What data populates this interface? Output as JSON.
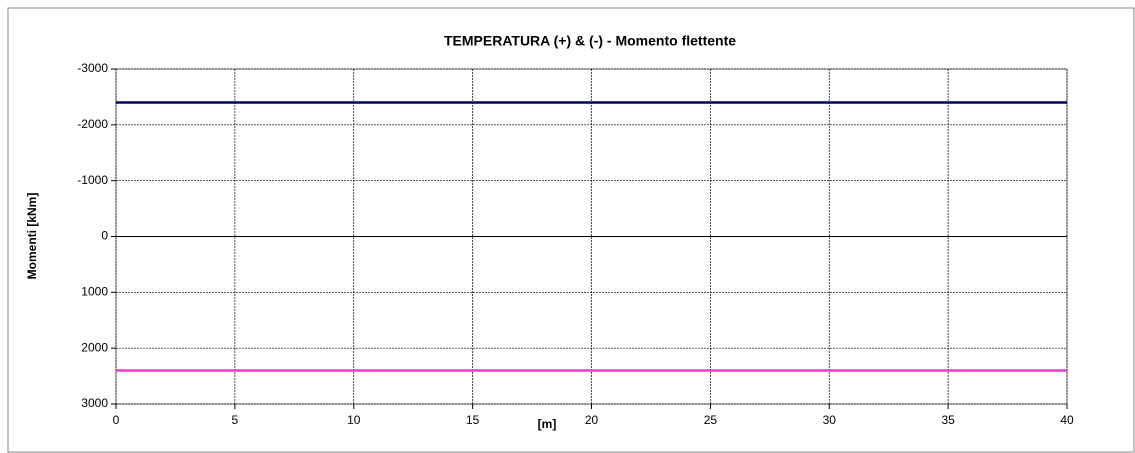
{
  "chart_data": {
    "type": "line",
    "title": "TEMPERATURA (+) & (-)  - Momento flettente",
    "xlabel": "[m]",
    "ylabel": "Momenti [kNm]",
    "series": [
      {
        "name": "TEMPERATURA (+)",
        "color": "#000066",
        "x": [
          0,
          40
        ],
        "values": [
          -2400,
          -2400
        ]
      },
      {
        "name": "TEMPERATURA (-)",
        "color": "#e040c8",
        "x": [
          0,
          40
        ],
        "values": [
          2400,
          2400
        ]
      }
    ],
    "xlim": [
      0,
      40
    ],
    "xticks": [
      0,
      5,
      10,
      15,
      20,
      25,
      30,
      35,
      40
    ],
    "ylim": [
      -3000,
      3000
    ],
    "yticks": [
      -3000,
      -2000,
      -1000,
      0,
      1000,
      2000,
      3000
    ],
    "invert_y": true,
    "grid": true
  }
}
